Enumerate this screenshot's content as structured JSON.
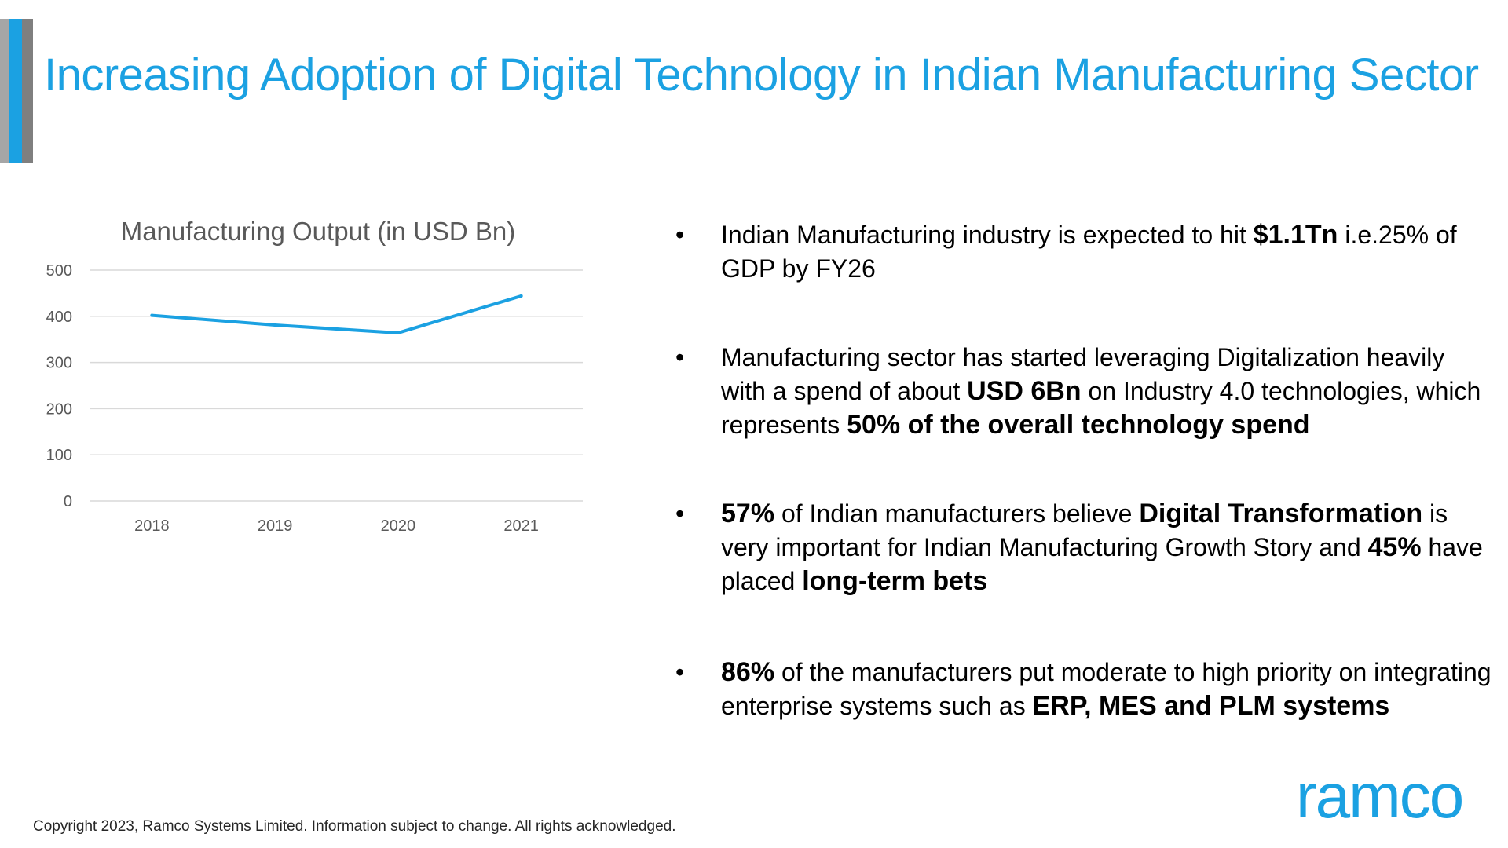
{
  "title": "Increasing Adoption of Digital Technology in Indian Manufacturing Sector",
  "colors": {
    "accent": "#1ba1e2",
    "grey_light": "#a6a6a6",
    "grey_dark": "#7f7f7f",
    "line": "#1ba1e2",
    "grid": "#d9d9d9"
  },
  "chart_data": {
    "type": "line",
    "title": "Manufacturing Output (in USD Bn)",
    "categories": [
      "2018",
      "2019",
      "2020",
      "2021"
    ],
    "series": [
      {
        "values": [
          402,
          381,
          364,
          444
        ]
      }
    ],
    "ylim": [
      0,
      500
    ],
    "yticks": [
      0,
      100,
      200,
      300,
      400,
      500
    ],
    "grid": true,
    "legend": "none"
  },
  "bullets": [
    {
      "parts": [
        {
          "t": "Indian Manufacturing industry is expected to hit ",
          "b": false
        },
        {
          "t": "$1.1Tn",
          "b": true
        },
        {
          "t": " i.e.25% of GDP by FY26",
          "b": false
        }
      ]
    },
    {
      "parts": [
        {
          "t": "Manufacturing sector has started leveraging Digitalization heavily with a spend of about ",
          "b": false
        },
        {
          "t": "USD 6Bn",
          "b": true
        },
        {
          "t": " on Industry 4.0 technologies, which represents ",
          "b": false
        },
        {
          "t": "50% of the overall technology spend",
          "b": true
        }
      ]
    },
    {
      "parts": [
        {
          "t": "57%",
          "b": true
        },
        {
          "t": " of Indian manufacturers believe ",
          "b": false
        },
        {
          "t": "Digital Transformation",
          "b": true
        },
        {
          "t": " is very important for Indian Manufacturing Growth Story and ",
          "b": false
        },
        {
          "t": "45%",
          "b": true
        },
        {
          "t": " have placed ",
          "b": false
        },
        {
          "t": "long-term bets",
          "b": true
        }
      ]
    },
    {
      "parts": [
        {
          "t": "86%",
          "b": true
        },
        {
          "t": " of the manufacturers put moderate to high priority on integrating enterprise systems such as ",
          "b": false
        },
        {
          "t": "ERP, MES and PLM systems",
          "b": true
        }
      ]
    }
  ],
  "logo": "ramco",
  "footer": "Copyright 2023, Ramco Systems Limited. Information subject to change. All rights acknowledged."
}
